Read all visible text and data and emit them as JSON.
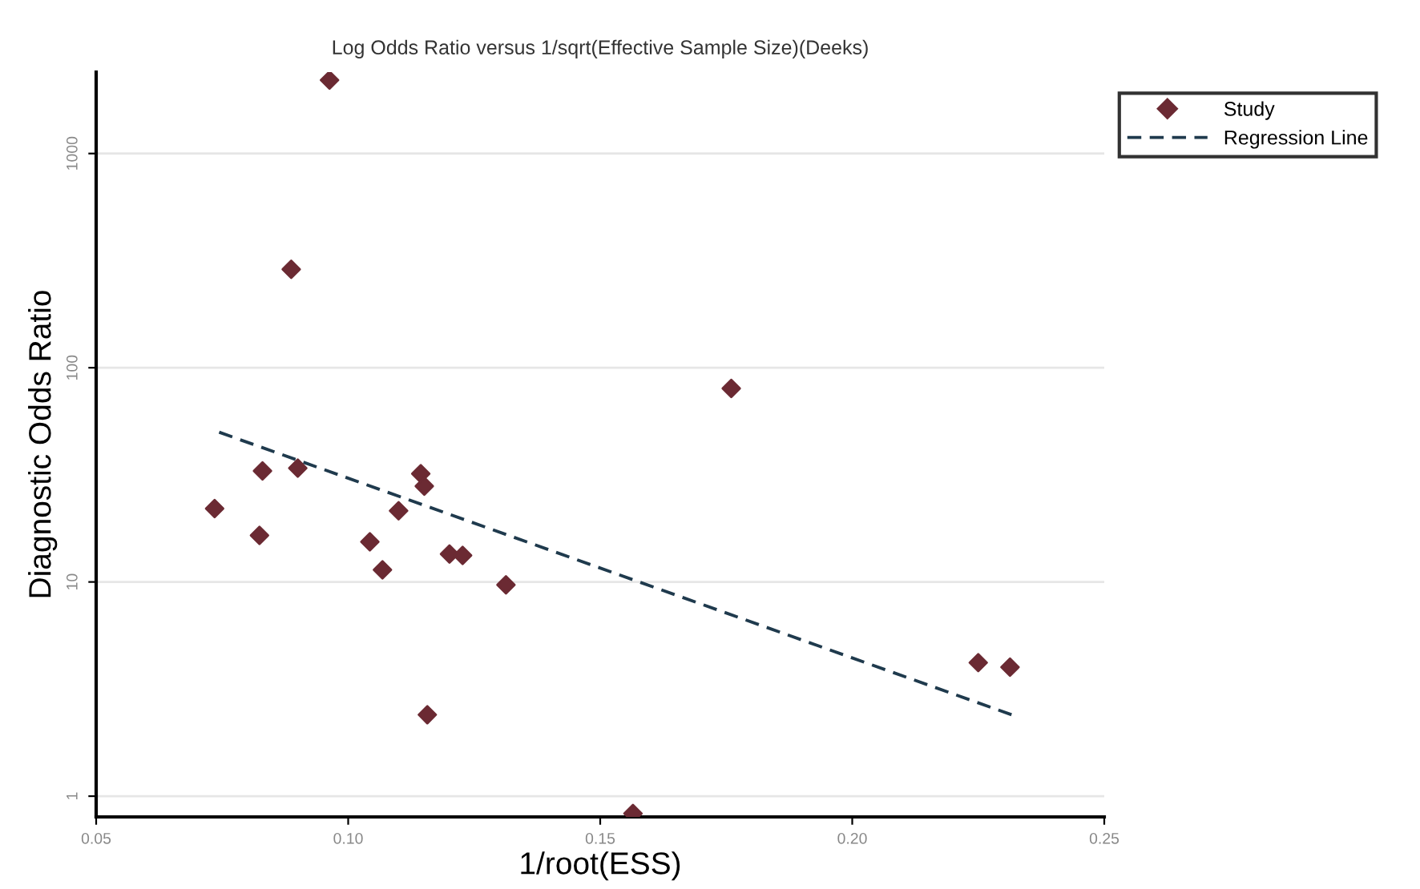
{
  "chart_data": {
    "type": "scatter",
    "title": "Log Odds Ratio versus 1/sqrt(Effective Sample Size)(Deeks)",
    "xlabel": "1/root(ESS)",
    "ylabel": "Diagnostic Odds Ratio",
    "log": "y",
    "grid": "y",
    "legend": "top right",
    "marker": "diamond",
    "xlim": [
      0.05,
      0.25
    ],
    "xticks": [
      {
        "value": 0.05,
        "label": "0.05"
      },
      {
        "value": 0.1,
        "label": "0.10"
      },
      {
        "value": 0.15,
        "label": "0.15"
      },
      {
        "value": 0.2,
        "label": "0.20"
      },
      {
        "value": 0.25,
        "label": "0.25"
      }
    ],
    "ylim": [
      0.8,
      2400
    ],
    "yticks": [
      1,
      10,
      100,
      1000
    ],
    "series": [
      {
        "name": "Study",
        "color": "#6b2a33",
        "x": [
          0.0963,
          0.0887,
          0.0735,
          0.083,
          0.09,
          0.0824,
          0.1144,
          0.1151,
          0.11,
          0.1043,
          0.1068,
          0.1201,
          0.1227,
          0.1313,
          0.1157,
          0.1565,
          0.176,
          0.225,
          0.2313
        ],
        "values": [
          2200,
          288,
          22,
          33,
          34,
          16.5,
          32,
          28,
          21.5,
          15.4,
          11.4,
          13.5,
          13.3,
          9.7,
          2.4,
          0.83,
          80,
          4.2,
          4.0
        ]
      },
      {
        "name": "Regression Line",
        "type": "line",
        "line_style": "dashed",
        "marker": "none",
        "color": "#1f3a4d",
        "x": [
          0.0744,
          0.2316
        ],
        "values": [
          50,
          2.4
        ]
      }
    ]
  }
}
